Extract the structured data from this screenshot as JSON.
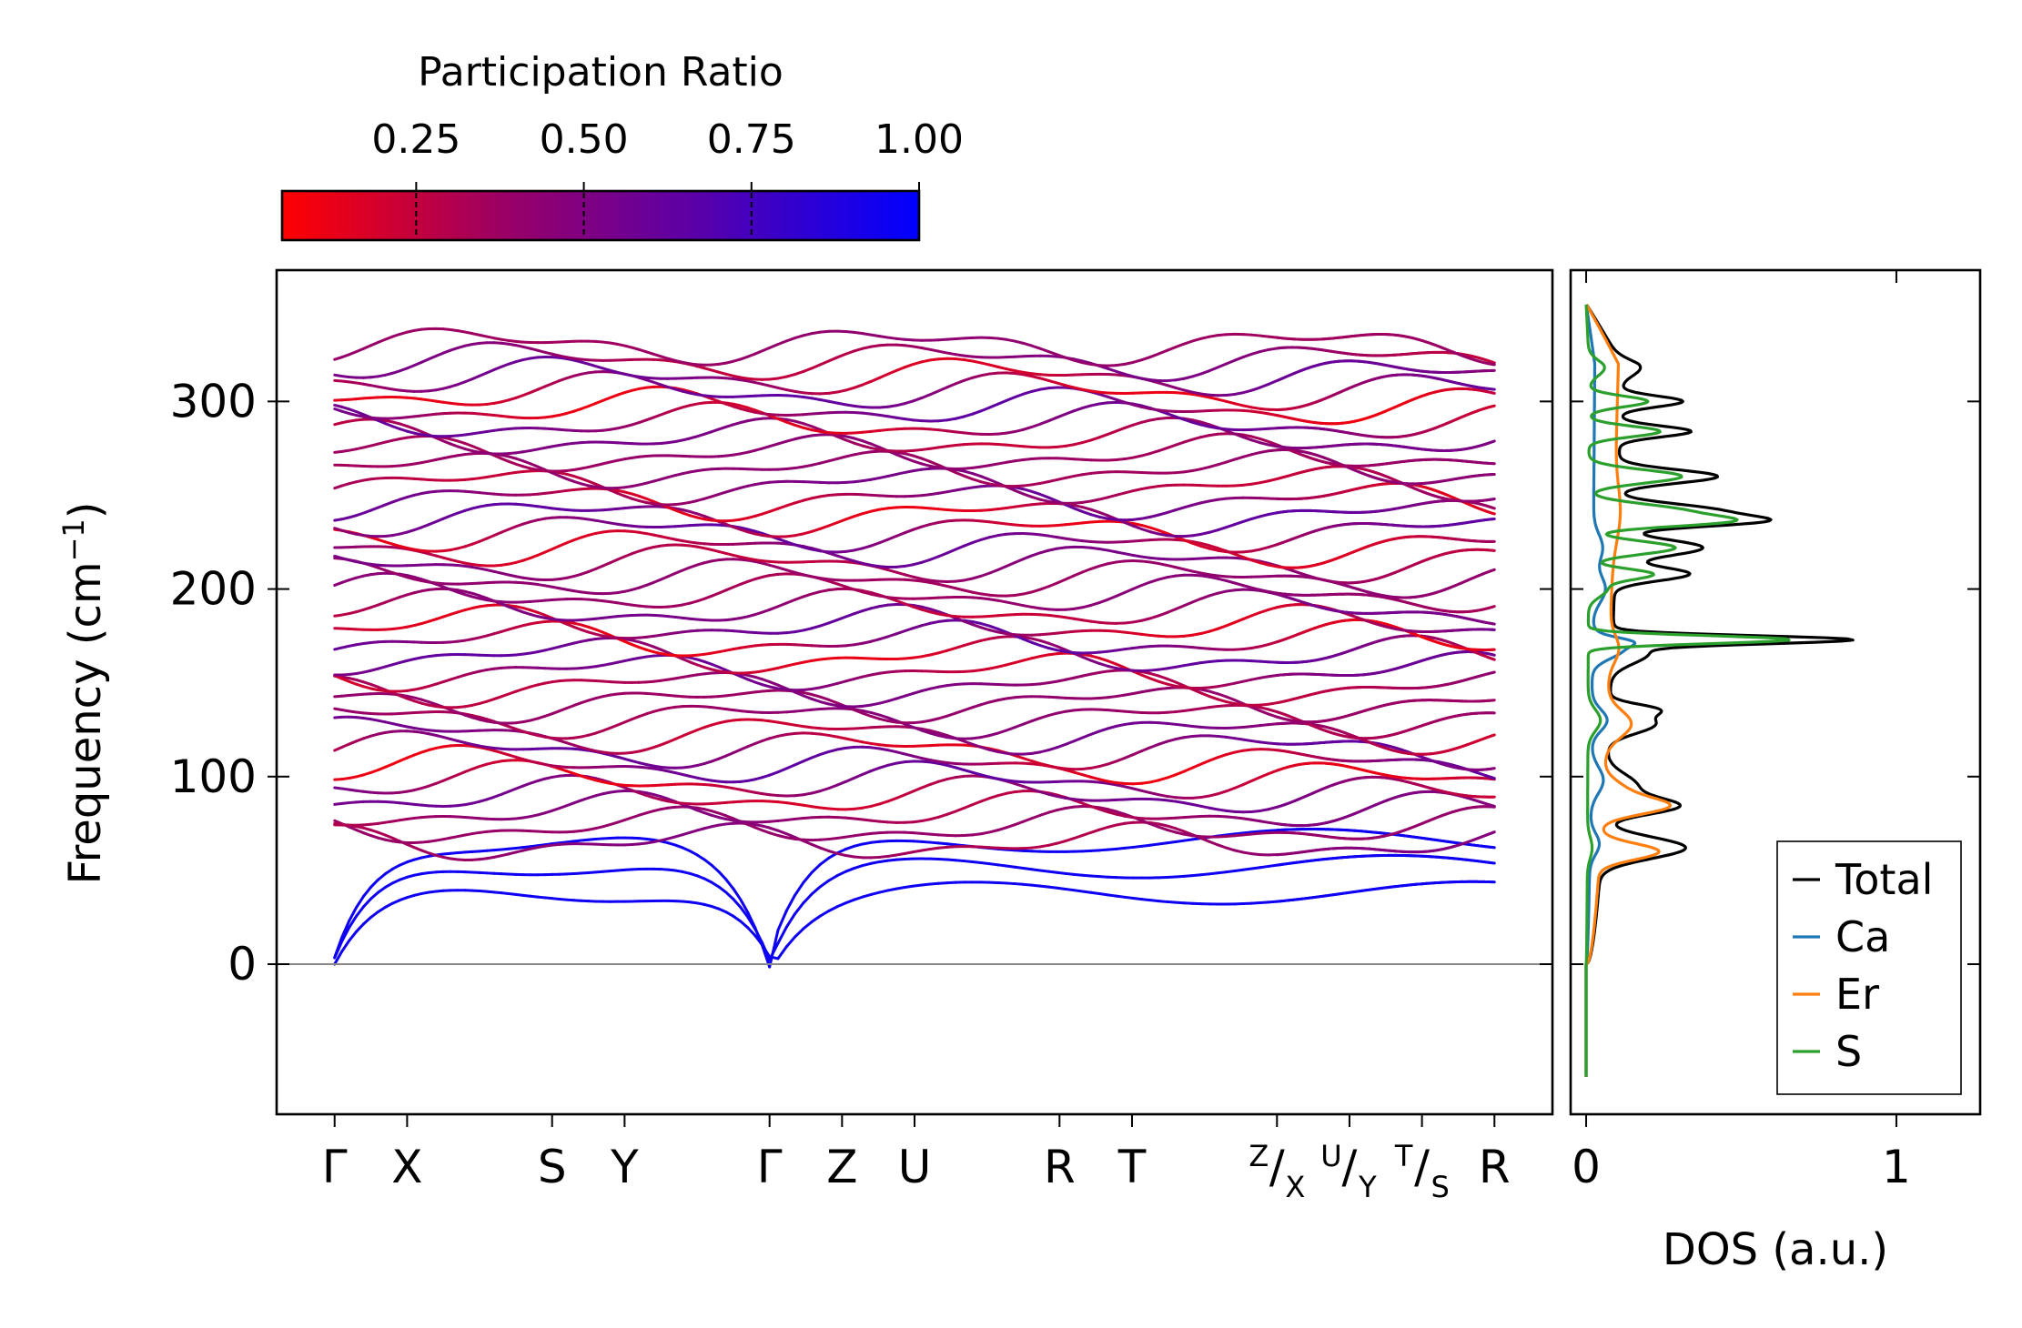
{
  "chart_data": [
    {
      "type": "line",
      "name": "phonon-band-structure",
      "ylabel_main": "Frequency (cm",
      "ylabel_sup": "−1",
      "ylabel_close": ")",
      "ylim": [
        -80,
        370
      ],
      "yticks": [
        0,
        100,
        200,
        300
      ],
      "ytick_labels": [
        "0",
        "100",
        "200",
        "300"
      ],
      "kpath_labels": [
        {
          "label": "Γ",
          "pos": 0
        },
        {
          "label": "X",
          "pos": 1
        },
        {
          "label": "S",
          "pos": 3
        },
        {
          "label": "Y",
          "pos": 4
        },
        {
          "label": "Γ",
          "pos": 6
        },
        {
          "label": "Z",
          "pos": 7
        },
        {
          "label": "U",
          "pos": 8
        },
        {
          "label": "R",
          "pos": 10
        },
        {
          "label": "T",
          "pos": 11
        },
        {
          "label": "R",
          "pos": 16
        }
      ],
      "kpath_stacked": [
        {
          "sup": "Z",
          "sub": "X",
          "pos": 13
        },
        {
          "sup": "U",
          "sub": "Y",
          "pos": 14
        },
        {
          "sup": "T",
          "sub": "S",
          "pos": 15
        }
      ],
      "slash": "/",
      "xrange": [
        -0.8,
        16.8
      ],
      "segments": [
        [
          0,
          6
        ],
        [
          6,
          13
        ],
        [
          13,
          14
        ],
        [
          14,
          15
        ],
        [
          15,
          16
        ]
      ],
      "num_bands": 36,
      "zero_line": 0
    },
    {
      "type": "line",
      "name": "participation-ratio-colorbar",
      "title": "Participation Ratio",
      "range": [
        0.05,
        1.0
      ],
      "ticks": [
        0.25,
        0.5,
        0.75,
        1.0
      ],
      "tick_labels": [
        "0.25",
        "0.50",
        "0.75",
        "1.00"
      ],
      "cmap": [
        "#ff0000",
        "#9a0066",
        "#5a00a8",
        "#0000ff"
      ]
    },
    {
      "type": "line",
      "name": "density-of-states",
      "xlabel": "DOS (a.u.)",
      "xlim": [
        -0.05,
        1.27
      ],
      "xticks": [
        0,
        1
      ],
      "xtick_labels": [
        "0",
        "1"
      ],
      "ylim": [
        -80,
        370
      ],
      "series": [
        {
          "name": "Total",
          "color": "#000000",
          "peaks": [
            [
              62,
              0.27,
              8
            ],
            [
              84,
              0.22,
              6
            ],
            [
              95,
              0.1,
              9
            ],
            [
              128,
              0.15,
              7
            ],
            [
              136,
              0.12,
              4
            ],
            [
              173,
              0.72,
              3
            ],
            [
              166,
              0.12,
              8
            ],
            [
              208,
              0.24,
              5
            ],
            [
              222,
              0.28,
              6
            ],
            [
              236,
              0.41,
              4
            ],
            [
              242,
              0.3,
              5
            ],
            [
              260,
              0.32,
              5
            ],
            [
              284,
              0.23,
              4
            ],
            [
              300,
              0.2,
              4
            ],
            [
              318,
              0.06,
              6
            ]
          ],
          "baseline": 0.05,
          "ymax": 352
        },
        {
          "name": "Ca",
          "color": "#1f77b4",
          "peaks": [
            [
              64,
              0.03,
              8
            ],
            [
              98,
              0.04,
              10
            ],
            [
              130,
              0.05,
              8
            ],
            [
              168,
              0.1,
              7
            ],
            [
              172,
              0.06,
              3
            ],
            [
              200,
              0.04,
              10
            ],
            [
              222,
              0.03,
              10
            ]
          ],
          "baseline": 0.012,
          "ymax": 352
        },
        {
          "name": "Er",
          "color": "#ff7f0e",
          "peaks": [
            [
              60,
              0.19,
              6
            ],
            [
              84,
              0.19,
              6
            ],
            [
              92,
              0.07,
              8
            ],
            [
              128,
              0.08,
              10
            ],
            [
              168,
              0.03,
              10
            ],
            [
              240,
              0.02,
              20
            ]
          ],
          "baseline": 0.045,
          "ymax": 352
        },
        {
          "name": "S",
          "color": "#2ca02c",
          "peaks": [
            [
              62,
              0.015,
              8
            ],
            [
              130,
              0.04,
              8
            ],
            [
              173,
              0.65,
              3
            ],
            [
              200,
              0.06,
              6
            ],
            [
              208,
              0.2,
              4
            ],
            [
              222,
              0.28,
              5
            ],
            [
              236,
              0.4,
              4
            ],
            [
              242,
              0.28,
              5
            ],
            [
              260,
              0.3,
              5
            ],
            [
              284,
              0.23,
              4
            ],
            [
              300,
              0.19,
              4
            ],
            [
              318,
              0.05,
              6
            ]
          ],
          "baseline": 0.004,
          "ymax": 352
        }
      ]
    }
  ],
  "legend": {
    "position": "lower-right",
    "entries": [
      {
        "label": "Total",
        "color": "#000000"
      },
      {
        "label": "Ca",
        "color": "#1f77b4"
      },
      {
        "label": "Er",
        "color": "#ff7f0e"
      },
      {
        "label": "S",
        "color": "#2ca02c"
      }
    ]
  }
}
